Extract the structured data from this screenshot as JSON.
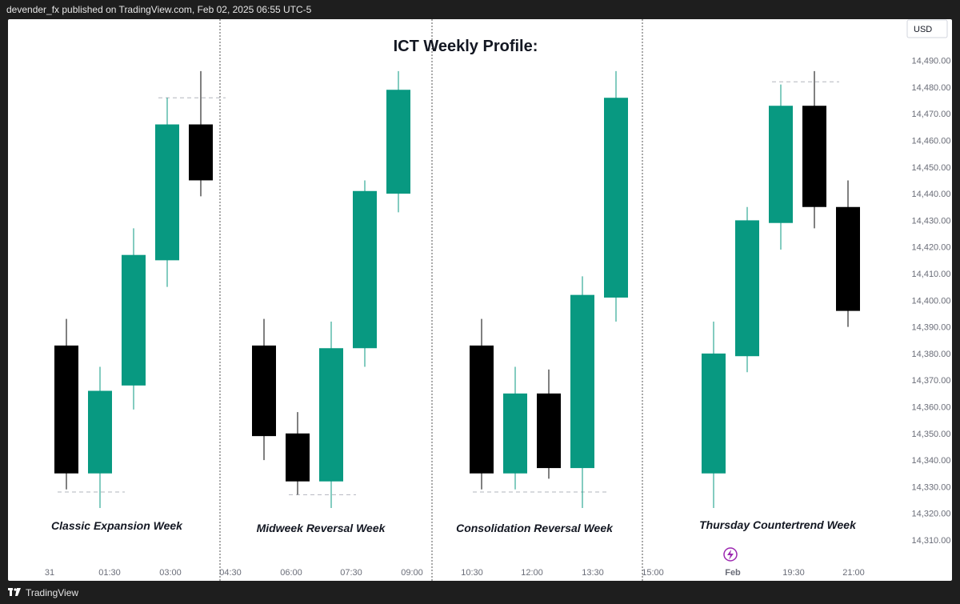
{
  "header": {
    "attribution": "devender_fx published on TradingView.com, Feb 02, 2025 06:55 UTC-5"
  },
  "footer": {
    "brand": "TradingView",
    "logo_icon": "tradingview-logo-icon"
  },
  "colors": {
    "bull": "#089981",
    "bear": "#000000",
    "separator": "#555555",
    "guide": "#b2b5be",
    "lightning": "#9c27b0"
  },
  "chart_data": {
    "type": "candlestick",
    "title": "ICT Weekly Profile:",
    "currency": "USD",
    "ylim": [
      14300,
      14500
    ],
    "y_ticks": [
      14310,
      14320,
      14330,
      14340,
      14350,
      14360,
      14370,
      14380,
      14390,
      14400,
      14410,
      14420,
      14430,
      14440,
      14450,
      14460,
      14470,
      14480,
      14490
    ],
    "x_ticks": [
      "31",
      "01:30",
      "03:00",
      "04:30",
      "06:00",
      "07:30",
      "09:00",
      "10:30",
      "12:00",
      "13:30",
      "15:00",
      "Feb",
      "19:30",
      "21:00"
    ],
    "x_tick_marker_icon": "lightning-icon",
    "panels": [
      {
        "label": "Classic Expansion Week",
        "candles": [
          {
            "open": 14383,
            "high": 14393,
            "low": 14329,
            "close": 14335
          },
          {
            "open": 14335,
            "high": 14375,
            "low": 14322,
            "close": 14366
          },
          {
            "open": 14368,
            "high": 14427,
            "low": 14359,
            "close": 14417
          },
          {
            "open": 14415,
            "high": 14476,
            "low": 14405,
            "close": 14466
          },
          {
            "open": 14466,
            "high": 14486,
            "low": 14439,
            "close": 14445
          }
        ],
        "guides": [
          {
            "value": 14476,
            "from": 3,
            "to": 4
          },
          {
            "value": 14328,
            "from": 0,
            "to": 1
          }
        ]
      },
      {
        "label": "Midweek Reversal Week",
        "candles": [
          {
            "open": 14383,
            "high": 14393,
            "low": 14340,
            "close": 14349
          },
          {
            "open": 14350,
            "high": 14358,
            "low": 14327,
            "close": 14332
          },
          {
            "open": 14332,
            "high": 14392,
            "low": 14322,
            "close": 14382
          },
          {
            "open": 14382,
            "high": 14445,
            "low": 14375,
            "close": 14441
          },
          {
            "open": 14440,
            "high": 14486,
            "low": 14433,
            "close": 14479
          }
        ],
        "guides": [
          {
            "value": 14327,
            "from": 1,
            "to": 2
          }
        ]
      },
      {
        "label": "Consolidation Reversal Week",
        "candles": [
          {
            "open": 14383,
            "high": 14393,
            "low": 14329,
            "close": 14335
          },
          {
            "open": 14335,
            "high": 14375,
            "low": 14329,
            "close": 14365
          },
          {
            "open": 14365,
            "high": 14374,
            "low": 14333,
            "close": 14337
          },
          {
            "open": 14337,
            "high": 14409,
            "low": 14322,
            "close": 14402
          },
          {
            "open": 14401,
            "high": 14486,
            "low": 14392,
            "close": 14476
          }
        ],
        "guides": [
          {
            "value": 14328,
            "from": 0,
            "to": 3
          }
        ]
      },
      {
        "label": "Thursday Countertrend Week",
        "candles": [
          {
            "open": 14335,
            "high": 14392,
            "low": 14322,
            "close": 14380
          },
          {
            "open": 14379,
            "high": 14435,
            "low": 14373,
            "close": 14430
          },
          {
            "open": 14429,
            "high": 14481,
            "low": 14419,
            "close": 14473
          },
          {
            "open": 14473,
            "high": 14486,
            "low": 14427,
            "close": 14435
          },
          {
            "open": 14435,
            "high": 14445,
            "low": 14390,
            "close": 14396
          }
        ],
        "guides": [
          {
            "value": 14482,
            "from": 2,
            "to": 3
          }
        ]
      }
    ]
  }
}
